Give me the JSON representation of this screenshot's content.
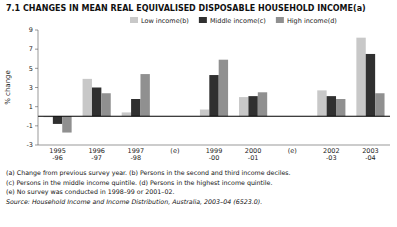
{
  "chart_data": {
    "type": "bar",
    "title": "7.1  CHANGES IN MEAN REAL EQUIVALISED DISPOSABLE HOUSEHOLD INCOME(a)",
    "ylabel": "% change",
    "categories": [
      "1995\n-96",
      "1996\n-97",
      "1997\n-98",
      "(e)",
      "1999\n-00",
      "2000\n-01",
      "(e)",
      "2002\n-03",
      "2003\n-04"
    ],
    "series": [
      {
        "name": "Low income(b)",
        "color": "#c8c8c8",
        "values": [
          -0.1,
          3.9,
          0.4,
          null,
          0.7,
          2.0,
          null,
          2.7,
          8.2
        ]
      },
      {
        "name": "Middle income(c)",
        "color": "#303030",
        "values": [
          -0.8,
          3.0,
          1.8,
          null,
          4.3,
          2.1,
          null,
          2.1,
          6.5
        ]
      },
      {
        "name": "High income(d)",
        "color": "#909090",
        "values": [
          -1.7,
          2.4,
          4.4,
          null,
          5.9,
          2.5,
          null,
          1.8,
          2.4
        ]
      }
    ],
    "ylim": [
      -3,
      9
    ],
    "yticks": [
      -3,
      -1,
      1,
      3,
      5,
      7,
      9
    ],
    "grid": false,
    "legend": "top",
    "annotations": [
      "(a) Change from previous survey year.  (b) Persons in the second and third income deciles.",
      "(c) Persons in the middle income quintile.  (d) Persons in the highest income quintile.",
      "(e) No survey was conducted in 1998–99 or 2001–02.",
      "Source: Household Income and Income Distribution, Australia, 2003–04 (6523.0)."
    ]
  }
}
